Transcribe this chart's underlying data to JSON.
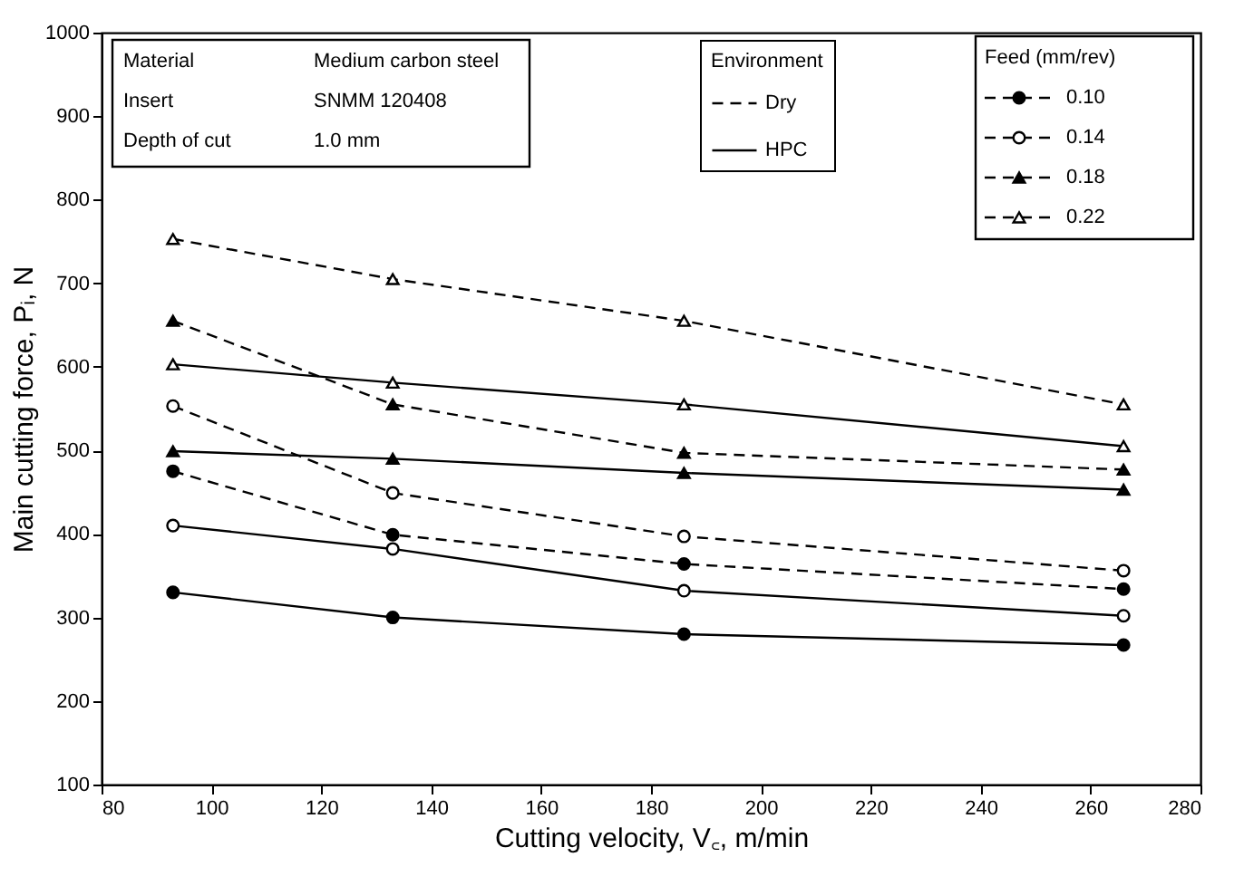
{
  "chart_data": {
    "type": "line",
    "xlabel": "Cutting velocity, V꜀, m/min",
    "ylabel": "Main cutting force, Pᵢ, N",
    "xlim": [
      80,
      280
    ],
    "xticks": [
      80,
      100,
      120,
      140,
      160,
      180,
      200,
      220,
      240,
      260,
      280
    ],
    "ylim": [
      100,
      1000
    ],
    "yticks": [
      100,
      200,
      300,
      400,
      500,
      600,
      700,
      800,
      900,
      1000
    ],
    "grid": false,
    "legend": "top right",
    "legend_title": "Feed (mm/rev)",
    "annotations": [
      "Material",
      "Medium carbon steel",
      "Insert",
      "SNMM 120408",
      "Depth of cut",
      "1.0 mm",
      "Environment",
      "Dry",
      "HPC"
    ],
    "x": [
      93,
      133,
      186,
      266
    ],
    "series": [
      {
        "name": "0.10",
        "color": "#000000",
        "marker": "circle",
        "line_style": "dashed",
        "values": [
          475,
          399,
          364,
          334
        ]
      },
      {
        "name": "0.14",
        "color": "#000000",
        "marker": "circle",
        "line_style": "dashed",
        "values": [
          553,
          449,
          397,
          356
        ]
      },
      {
        "name": "0.18",
        "color": "#000000",
        "marker": "triangle",
        "line_style": "dashed",
        "values": [
          655,
          555,
          497,
          477
        ]
      },
      {
        "name": "0.22",
        "color": "#000000",
        "marker": "triangle",
        "line_style": "dashed",
        "values": [
          753,
          705,
          655,
          555
        ]
      },
      {
        "color": "#000000",
        "marker": "circle",
        "line_style": "solid",
        "values": [
          330,
          300,
          280,
          267
        ]
      },
      {
        "color": "#000000",
        "marker": "circle",
        "line_style": "solid",
        "values": [
          410,
          382,
          332,
          302
        ]
      },
      {
        "color": "#000000",
        "marker": "triangle",
        "line_style": "solid",
        "values": [
          499,
          490,
          473,
          453
        ]
      },
      {
        "color": "#000000",
        "marker": "triangle",
        "line_style": "solid",
        "values": [
          603,
          581,
          555,
          505
        ]
      }
    ]
  }
}
